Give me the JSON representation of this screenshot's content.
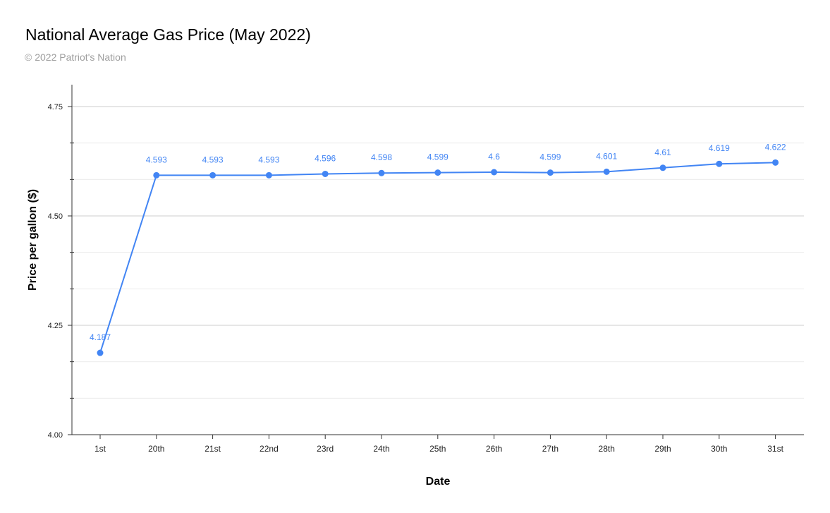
{
  "chart_data": {
    "type": "line",
    "title": "National Average Gas Price (May 2022)",
    "subtitle": "© 2022 Patriot's Nation",
    "xlabel": "Date",
    "ylabel": "Price per gallon ($)",
    "categories": [
      "1st",
      "20th",
      "21st",
      "22nd",
      "23rd",
      "24th",
      "25th",
      "26th",
      "27th",
      "28th",
      "29th",
      "30th",
      "31st"
    ],
    "series": [
      {
        "values": [
          4.187,
          4.593,
          4.593,
          4.593,
          4.596,
          4.598,
          4.599,
          4.6,
          4.599,
          4.601,
          4.61,
          4.619,
          4.622
        ],
        "labels": [
          "4.187",
          "4.593",
          "4.593",
          "4.593",
          "4.596",
          "4.598",
          "4.599",
          "4.6",
          "4.599",
          "4.601",
          "4.61",
          "4.619",
          "4.622"
        ],
        "color": "#4285f4"
      }
    ],
    "ylim": [
      4.0,
      4.8
    ],
    "yticks": [
      4.0,
      4.25,
      4.5,
      4.75
    ],
    "ytick_labels": [
      "4.00",
      "4.25",
      "4.50",
      "4.75"
    ],
    "yminor_ticks": [
      4.0833,
      4.1667,
      4.3333,
      4.4167,
      4.5833,
      4.6667
    ],
    "grid": true,
    "legend": "none"
  }
}
